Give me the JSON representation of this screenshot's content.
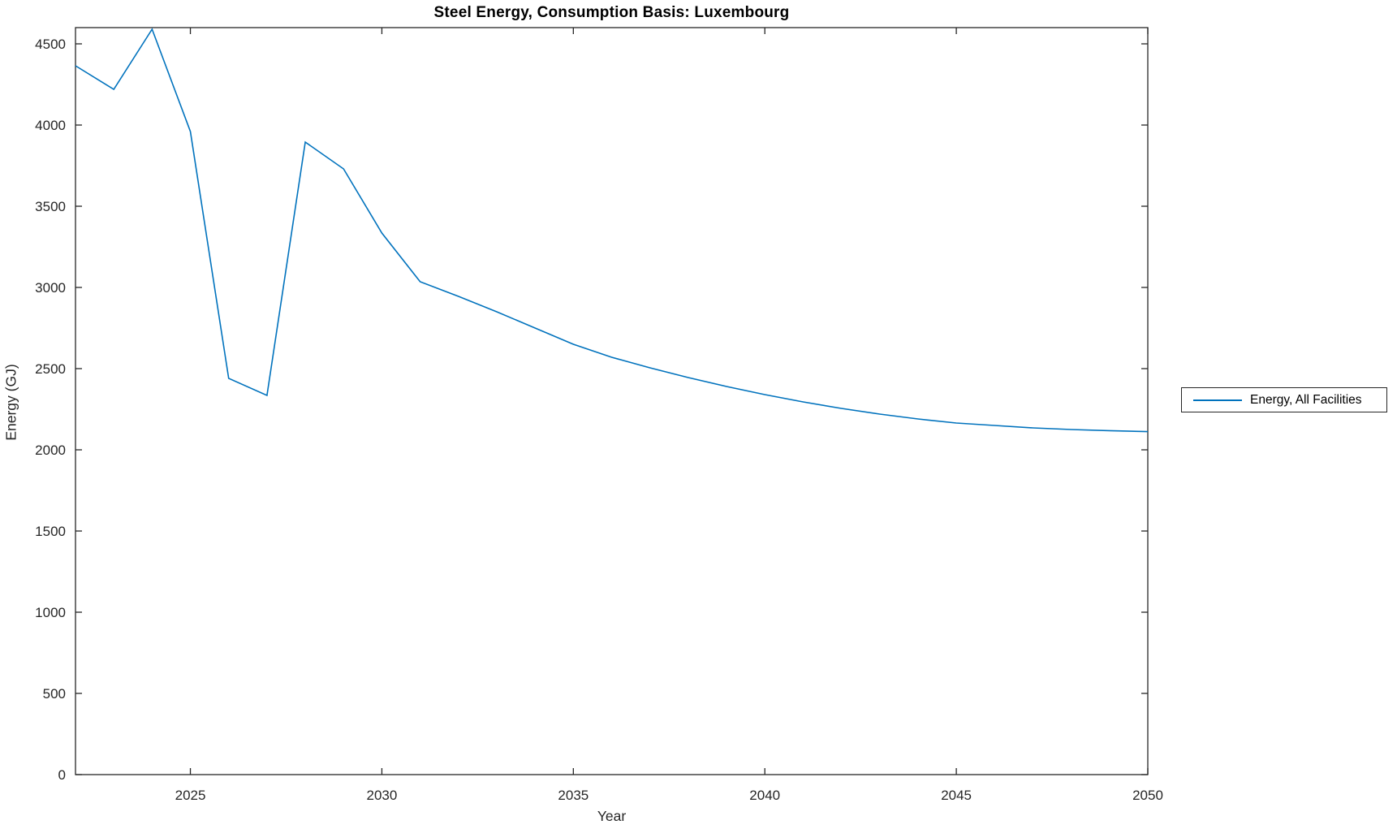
{
  "figure": {
    "title": "Steel Energy, Consumption Basis: Luxembourg",
    "xlabel": "Year",
    "ylabel": "Energy (GJ)",
    "legend": {
      "label": "Energy, All Facilities"
    }
  },
  "colors": {
    "line": "#0072BD",
    "axis": "#262626",
    "tick_label": "#262626",
    "background": "#ffffff"
  },
  "chart_data": {
    "type": "line",
    "title": "Steel Energy, Consumption Basis: Luxembourg",
    "xlabel": "Year",
    "ylabel": "Energy (GJ)",
    "legend_entries": [
      "Energy, All Facilities"
    ],
    "legend_position": "right-outside",
    "grid": false,
    "xlim": [
      2022,
      2050
    ],
    "ylim": [
      0,
      4600
    ],
    "xticks": [
      2025,
      2030,
      2035,
      2040,
      2045,
      2050
    ],
    "yticks": [
      0,
      500,
      1000,
      1500,
      2000,
      2500,
      3000,
      3500,
      4000,
      4500
    ],
    "series": [
      {
        "name": "Energy, All Facilities",
        "color": "#0072BD",
        "x": [
          2022,
          2023,
          2024,
          2025,
          2026,
          2027,
          2028,
          2029,
          2030,
          2031,
          2032,
          2033,
          2034,
          2035,
          2036,
          2037,
          2038,
          2039,
          2040,
          2041,
          2042,
          2043,
          2044,
          2045,
          2046,
          2047,
          2048,
          2049,
          2050
        ],
        "y": [
          4365,
          4220,
          4590,
          3960,
          2440,
          2335,
          3895,
          3730,
          3335,
          3035,
          2945,
          2850,
          2750,
          2650,
          2570,
          2505,
          2445,
          2390,
          2340,
          2295,
          2255,
          2220,
          2190,
          2165,
          2150,
          2135,
          2125,
          2118,
          2112
        ]
      }
    ]
  }
}
